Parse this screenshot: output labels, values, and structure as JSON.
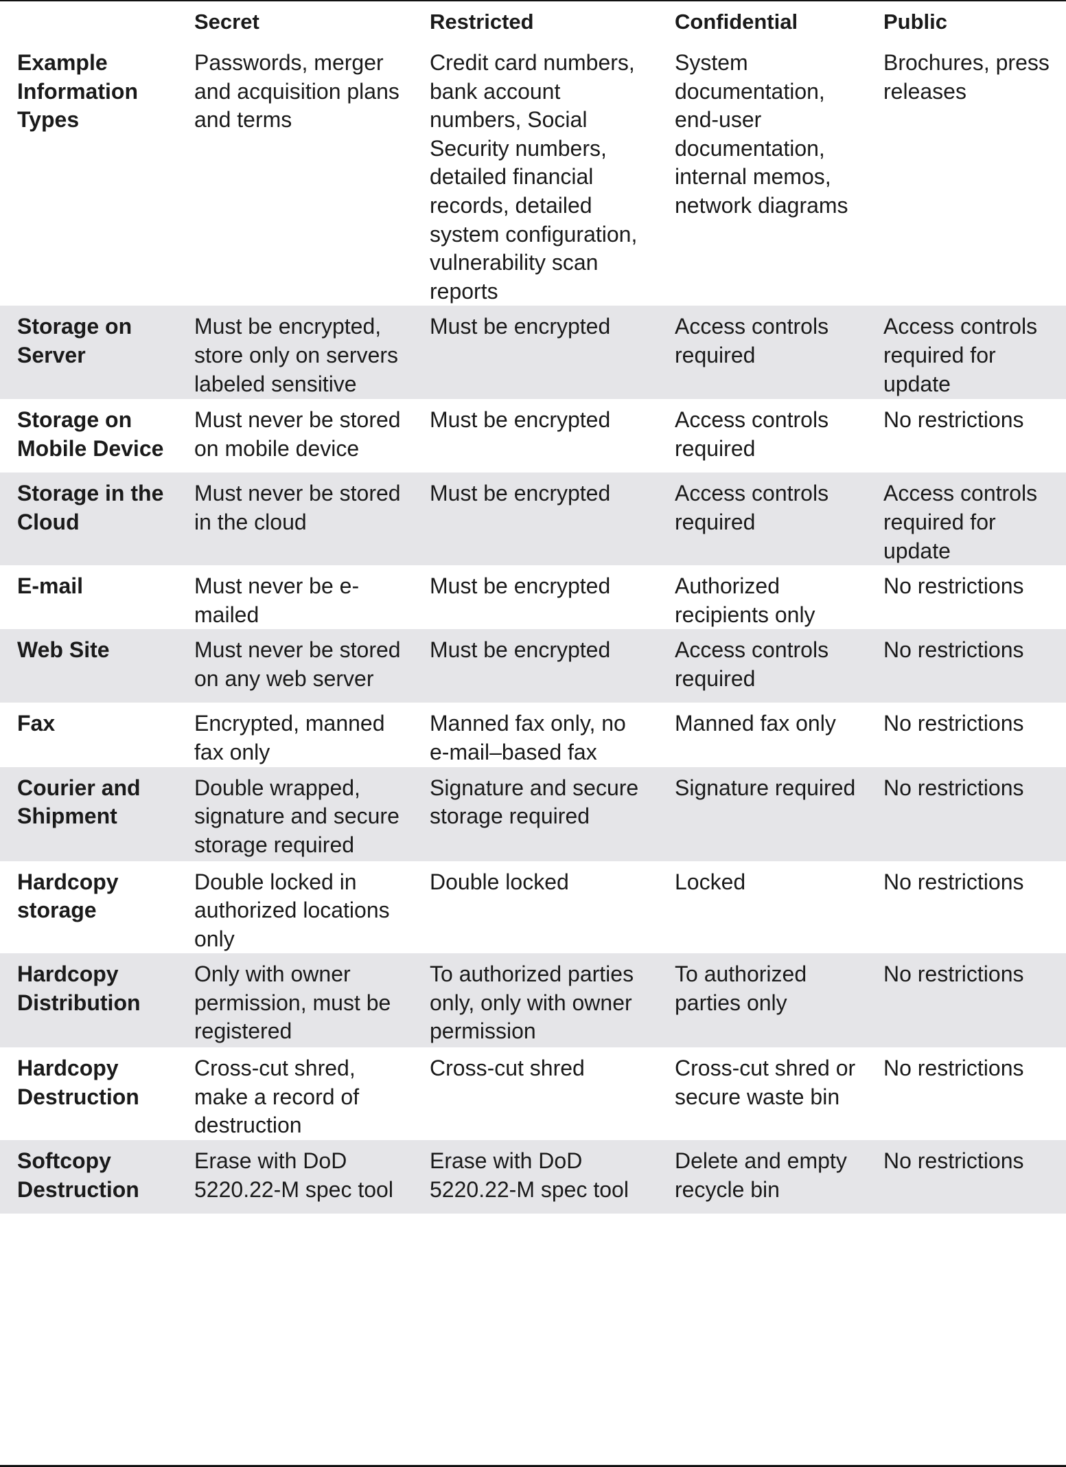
{
  "table": {
    "headers": [
      "",
      "Secret",
      "Restricted",
      "Confidential",
      "Public"
    ],
    "rows": [
      {
        "label": "Example Information Types",
        "cells": [
          "Passwords, merger and acquisition plans and terms",
          "Credit card numbers, bank account numbers, Social Security numbers, detailed financial records, detailed system configuration, vulnerability scan reports",
          "System documentation, end-user documentation, internal memos, network diagrams",
          "Brochures, press releases"
        ]
      },
      {
        "label": "Storage on Server",
        "cells": [
          "Must be encrypted, store only on servers labeled sensitive",
          "Must be encrypted",
          "Access controls required",
          "Access controls required for update"
        ]
      },
      {
        "label": "Storage on Mobile Device",
        "cells": [
          "Must never be stored on mobile device",
          "Must be encrypted",
          "Access controls required",
          "No restrictions"
        ]
      },
      {
        "label": "Storage in the Cloud",
        "cells": [
          "Must never be stored in the cloud",
          "Must be encrypted",
          "Access controls required",
          "Access controls required for update"
        ]
      },
      {
        "label": "E-mail",
        "cells": [
          "Must never be e-mailed",
          "Must be encrypted",
          "Authorized recipients only",
          "No restrictions"
        ]
      },
      {
        "label": "Web Site",
        "cells": [
          "Must never be stored on any web server",
          "Must be encrypted",
          "Access controls required",
          "No restrictions"
        ]
      },
      {
        "label": "Fax",
        "cells": [
          "Encrypted, manned fax only",
          "Manned fax only, no e-mail–based fax",
          "Manned fax only",
          "No restrictions"
        ]
      },
      {
        "label": "Courier and Shipment",
        "cells": [
          "Double wrapped, signature and secure storage required",
          "Signature and secure storage required",
          "Signature required",
          "No restrictions"
        ]
      },
      {
        "label": "Hardcopy storage",
        "cells": [
          "Double locked in authorized locations only",
          "Double locked",
          "Locked",
          "No restrictions"
        ]
      },
      {
        "label": "Hardcopy Distribution",
        "cells": [
          "Only with owner permission, must be registered",
          "To authorized parties only, only with owner permission",
          "To authorized parties only",
          "No restrictions"
        ]
      },
      {
        "label": "Hardcopy Destruction",
        "cells": [
          "Cross-cut shred, make a record of destruction",
          "Cross-cut shred",
          "Cross-cut shred or secure waste bin",
          "No restrictions"
        ]
      },
      {
        "label": "Softcopy Destruction",
        "cells": [
          "Erase with DoD 5220.22-M spec tool",
          "Erase with DoD 5220.22-M spec tool",
          "Delete and empty recycle bin",
          "No restrictions"
        ]
      }
    ]
  },
  "colors": {
    "row_shade": "#e5e5e8",
    "text": "#1a1a1a",
    "rule": "#111111"
  }
}
